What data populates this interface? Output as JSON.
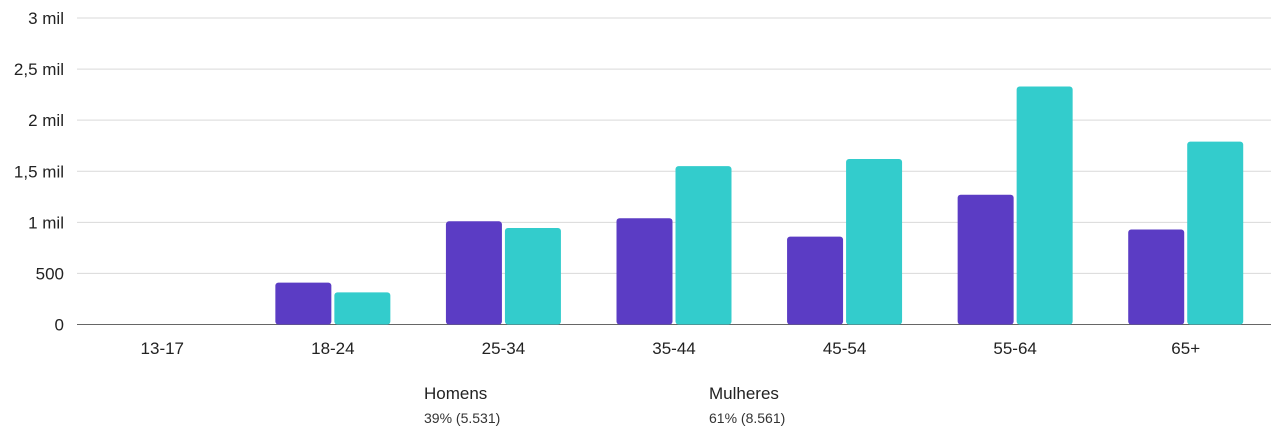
{
  "chart_data": {
    "type": "bar",
    "categories": [
      "13-17",
      "18-24",
      "25-34",
      "35-44",
      "45-54",
      "55-64",
      "65+"
    ],
    "series": [
      {
        "name": "Homens",
        "values": [
          0,
          410,
          1010,
          1040,
          860,
          1270,
          930
        ]
      },
      {
        "name": "Mulheres",
        "values": [
          0,
          315,
          945,
          1550,
          1620,
          2330,
          1790
        ]
      }
    ],
    "ylim": [
      0,
      3000
    ],
    "yticks": [
      0,
      500,
      1000,
      1500,
      2000,
      2500,
      3000
    ],
    "ytick_labels": [
      "0",
      "500",
      "1 mil",
      "1,5 mil",
      "2 mil",
      "2,5 mil",
      "3 mil"
    ],
    "grid": true,
    "legend_position": "bottom",
    "colors": [
      "#5b3cc4",
      "#33cccc"
    ],
    "legend": [
      {
        "name": "Homens",
        "detail": "39% (5.531)"
      },
      {
        "name": "Mulheres",
        "detail": "61% (8.561)"
      }
    ]
  }
}
